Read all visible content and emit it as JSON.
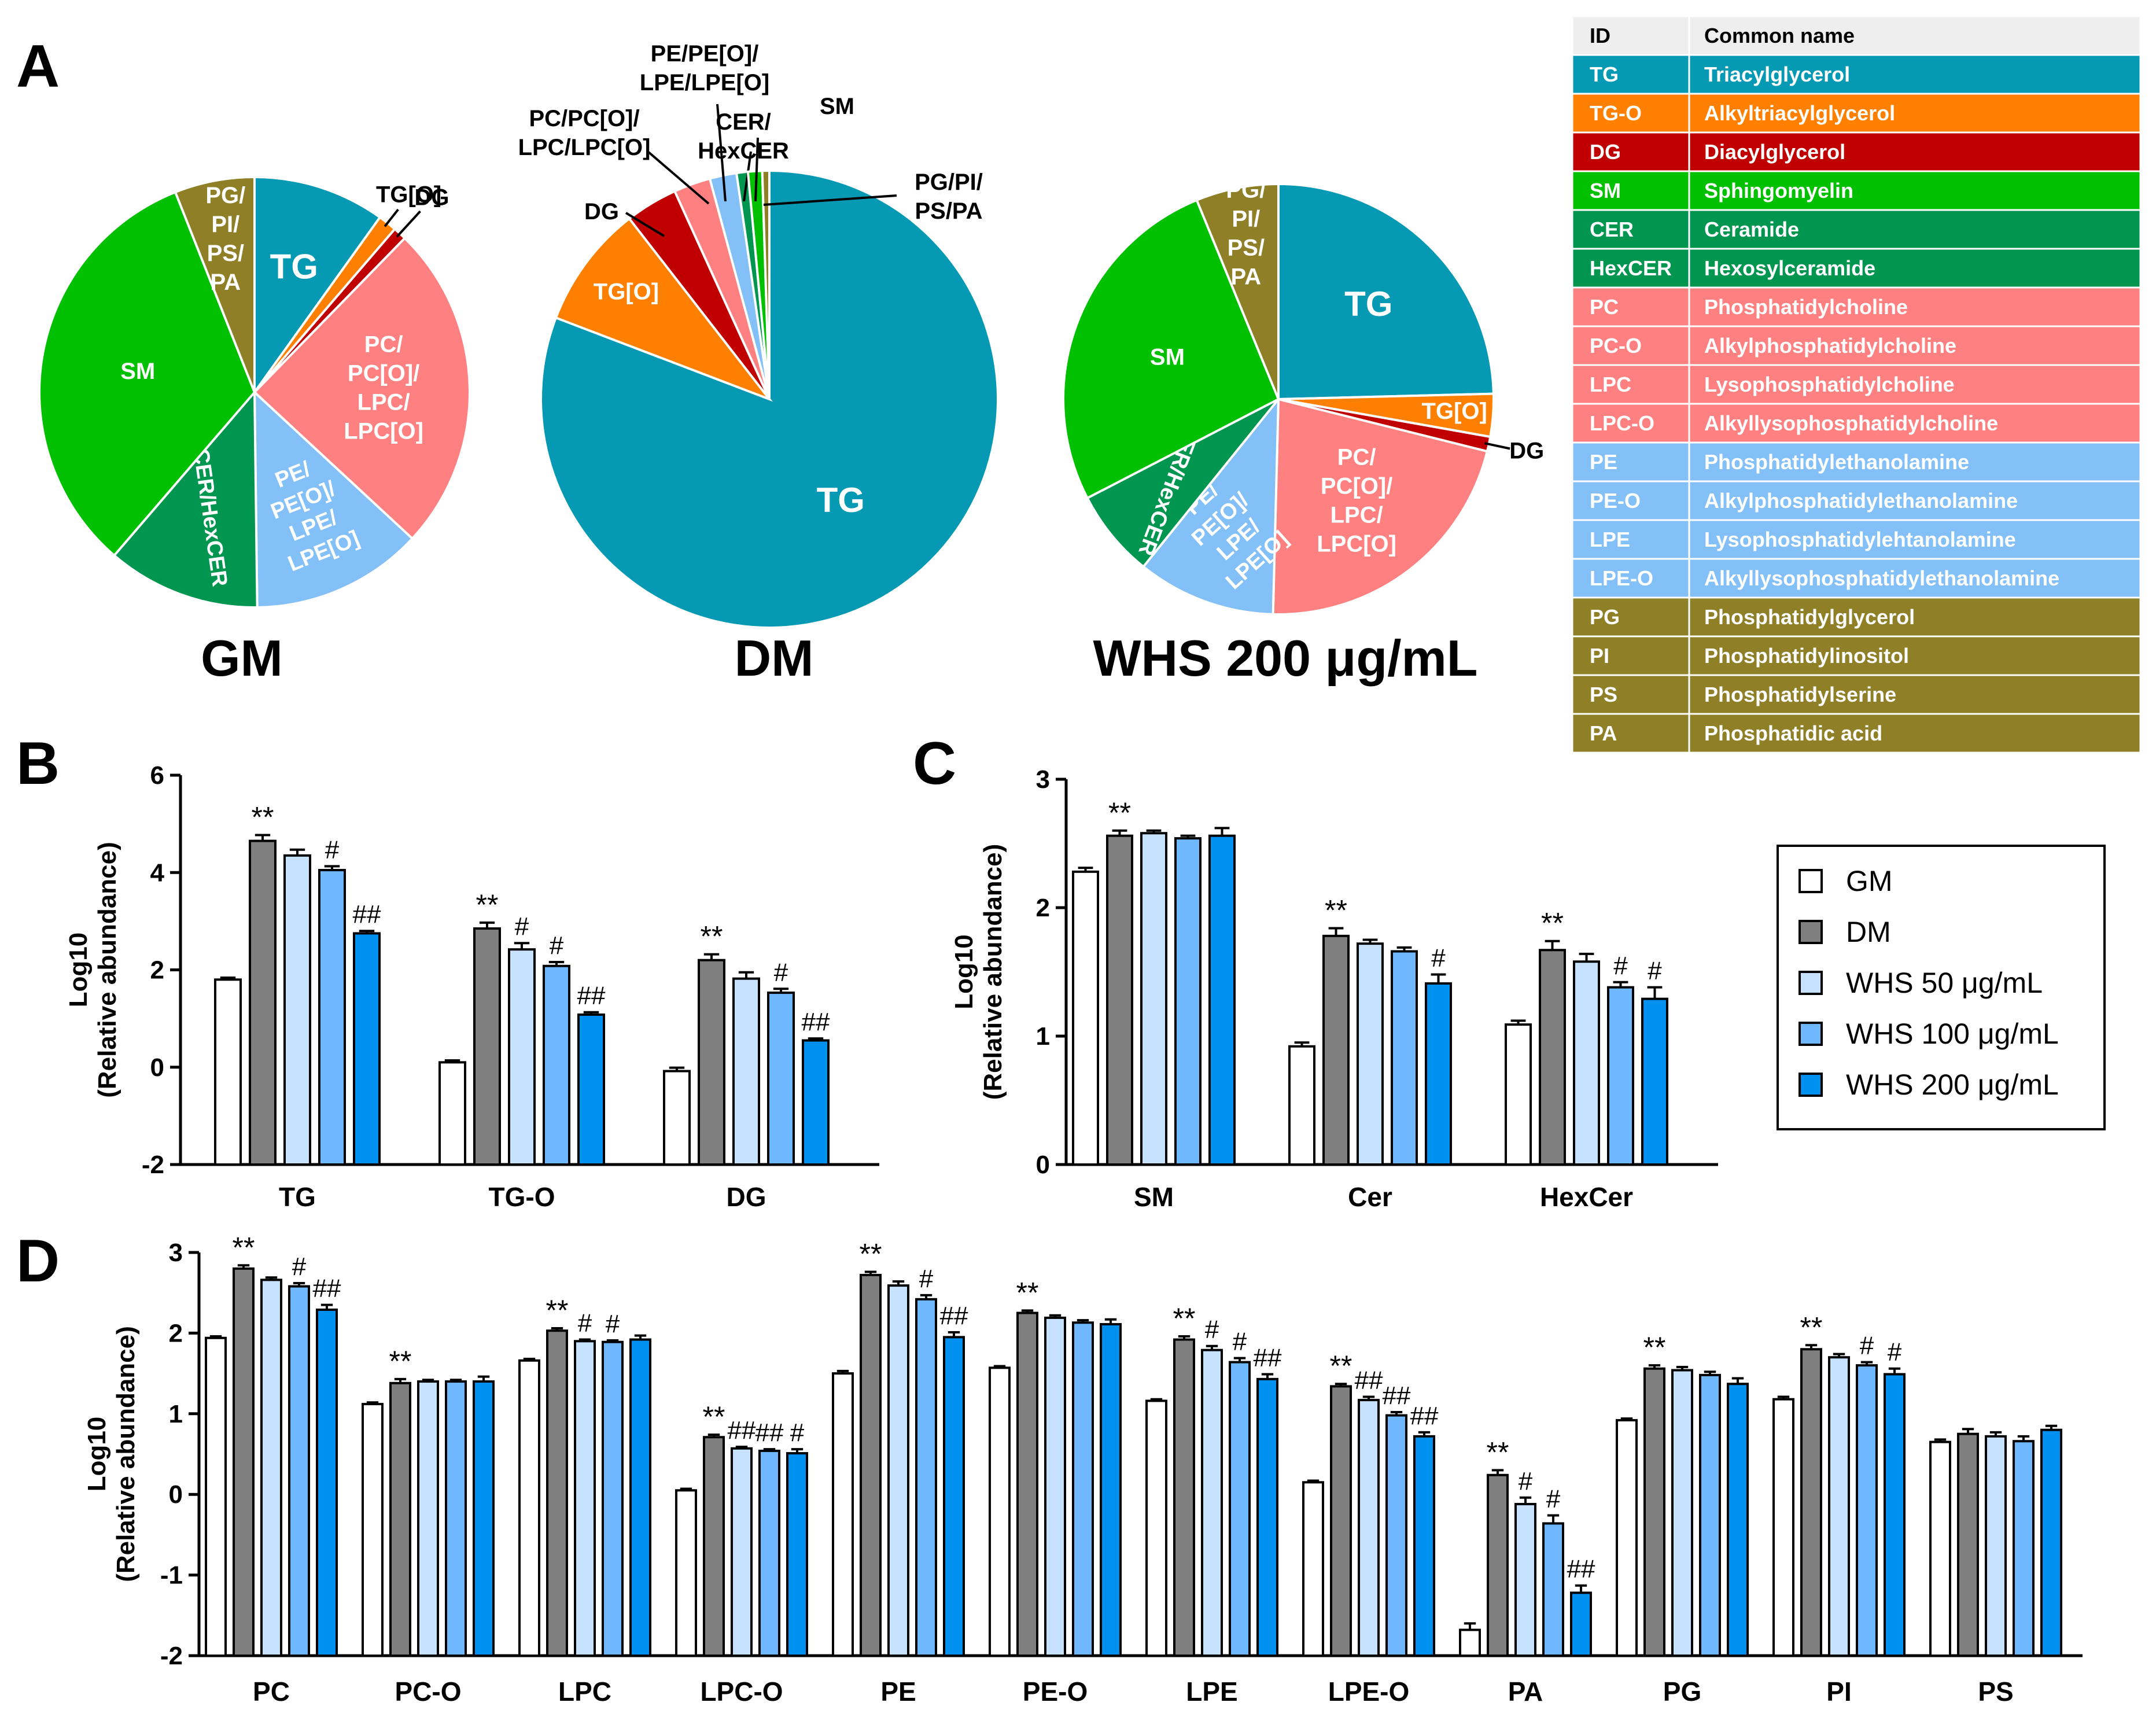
{
  "colors": {
    "TG": "#0599b3",
    "TGO": "#ff8000",
    "DG": "#c00000",
    "SM": "#00c000",
    "CER": "#009650",
    "PC": "#ff8080",
    "PE": "#84c0f8",
    "PG": "#8f7f27",
    "GM": "#ffffff",
    "DM": "#7f7f7f",
    "W50": "#c6e2ff",
    "W100": "#6fb7ff",
    "W200": "#0090f0"
  },
  "panel_a": {
    "label": "A",
    "pies": [
      {
        "title": "GM",
        "slices": [
          {
            "key": "TG",
            "label": "TG",
            "pct": 9.9,
            "color_key": "TG"
          },
          {
            "key": "TG-O",
            "label": "TG[O]",
            "pct": 1.4,
            "color_key": "TGO"
          },
          {
            "key": "DG",
            "label": "DG",
            "pct": 1.0,
            "color_key": "DG"
          },
          {
            "key": "PC",
            "label": "PC/\nPC[O]/\nLPC/\nLPC[O]",
            "pct": 24.6,
            "color_key": "PC"
          },
          {
            "key": "PE",
            "label": "PE/\nPE[O]/\nLPE/\nLPE[O]",
            "pct": 12.9,
            "color_key": "PE"
          },
          {
            "key": "CER",
            "label": "CER/HexCER",
            "pct": 11.5,
            "color_key": "CER"
          },
          {
            "key": "SM",
            "label": "SM",
            "pct": 32.7,
            "color_key": "SM"
          },
          {
            "key": "PG",
            "label": "PG/\nPI/\nPS/\nPA",
            "pct": 6.0,
            "color_key": "PG"
          }
        ]
      },
      {
        "title": "DM",
        "slices": [
          {
            "key": "TG",
            "label": "TG",
            "pct": 80.8,
            "color_key": "TG"
          },
          {
            "key": "TG-O",
            "label": "TG[O]",
            "pct": 8.7,
            "color_key": "TGO"
          },
          {
            "key": "DG",
            "label": "DG",
            "pct": 3.7,
            "color_key": "DG"
          },
          {
            "key": "PC",
            "label": "PC/PC[O]/\nLPC/LPC[O]",
            "pct": 2.6,
            "color_key": "PC"
          },
          {
            "key": "PE",
            "label": "PE/PE[O]/\nLPE/LPE[O]",
            "pct": 1.9,
            "color_key": "PE"
          },
          {
            "key": "CER",
            "label": "CER/\nHexCER",
            "pct": 0.8,
            "color_key": "CER"
          },
          {
            "key": "SM",
            "label": "SM",
            "pct": 1.0,
            "color_key": "SM"
          },
          {
            "key": "PG",
            "label": "PG/PI/\nPS/PA",
            "pct": 0.5,
            "color_key": "PG"
          }
        ]
      },
      {
        "title": "WHS 200 μg/mL",
        "slices": [
          {
            "key": "TG",
            "label": "TG",
            "pct": 24.6,
            "color_key": "TG"
          },
          {
            "key": "TG-O",
            "label": "TG[O]",
            "pct": 3.2,
            "color_key": "TGO"
          },
          {
            "key": "DG",
            "label": "DG",
            "pct": 1.1,
            "color_key": "DG"
          },
          {
            "key": "PC",
            "label": "PC/\nPC[O]/\nLPC/\nLPC[O]",
            "pct": 21.5,
            "color_key": "PC"
          },
          {
            "key": "PE",
            "label": "PE/\nPE[O]/\nLPE/\nLPE[O]",
            "pct": 10.4,
            "color_key": "PE"
          },
          {
            "key": "CER",
            "label": "CER/HexCER",
            "pct": 6.6,
            "color_key": "CER"
          },
          {
            "key": "SM",
            "label": "SM",
            "pct": 26.4,
            "color_key": "SM"
          },
          {
            "key": "PG",
            "label": "PG/\nPI/\nPS/\nPA",
            "pct": 6.2,
            "color_key": "PG"
          }
        ]
      }
    ]
  },
  "legend_table": {
    "headers": [
      "ID",
      "Common name"
    ],
    "rows": [
      {
        "id": "TG",
        "name": "Triacylglycerol",
        "color_key": "TG"
      },
      {
        "id": "TG-O",
        "name": "Alkyltriacylglycerol",
        "color_key": "TGO"
      },
      {
        "id": "DG",
        "name": "Diacylglycerol",
        "color_key": "DG"
      },
      {
        "id": "SM",
        "name": "Sphingomyelin",
        "color_key": "SM"
      },
      {
        "id": "CER",
        "name": "Ceramide",
        "color_key": "CER"
      },
      {
        "id": "HexCER",
        "name": "Hexosylceramide",
        "color_key": "CER"
      },
      {
        "id": "PC",
        "name": "Phosphatidylcholine",
        "color_key": "PC"
      },
      {
        "id": "PC-O",
        "name": "Alkylphosphatidylcholine",
        "color_key": "PC"
      },
      {
        "id": "LPC",
        "name": "Lysophosphatidylcholine",
        "color_key": "PC"
      },
      {
        "id": "LPC-O",
        "name": "Alkyllysophosphatidylcholine",
        "color_key": "PC"
      },
      {
        "id": "PE",
        "name": "Phosphatidylethanolamine",
        "color_key": "PE"
      },
      {
        "id": "PE-O",
        "name": "Alkylphosphatidylethanolamine",
        "color_key": "PE"
      },
      {
        "id": "LPE",
        "name": "Lysophosphatidylehtanolamine",
        "color_key": "PE"
      },
      {
        "id": "LPE-O",
        "name": "Alkyllysophosphatidylethanolamine",
        "color_key": "PE"
      },
      {
        "id": "PG",
        "name": "Phosphatidylglycerol",
        "color_key": "PG"
      },
      {
        "id": "PI",
        "name": "Phosphatidylinositol",
        "color_key": "PG"
      },
      {
        "id": "PS",
        "name": "Phosphatidylserine",
        "color_key": "PG"
      },
      {
        "id": "PA",
        "name": "Phosphatidic acid",
        "color_key": "PG"
      }
    ]
  },
  "bar_legend": {
    "entries": [
      {
        "name": "GM",
        "color_key": "GM"
      },
      {
        "name": "DM",
        "color_key": "DM"
      },
      {
        "name": "WHS 50 μg/mL",
        "color_key": "W50"
      },
      {
        "name": "WHS 100 μg/mL",
        "color_key": "W100"
      },
      {
        "name": "WHS 200 μg/mL",
        "color_key": "W200"
      }
    ]
  },
  "chart_data": [
    {
      "panel": "A-GM",
      "type": "pie",
      "title": "GM",
      "categories": [
        "TG",
        "TG[O]",
        "DG",
        "PC/PC[O]/LPC/LPC[O]",
        "PE/PE[O]/LPE/LPE[O]",
        "CER/HexCER",
        "SM",
        "PG/PI/PS/PA"
      ],
      "values": [
        9.9,
        1.4,
        1.0,
        24.6,
        12.9,
        11.5,
        32.7,
        6.0
      ]
    },
    {
      "panel": "A-DM",
      "type": "pie",
      "title": "DM",
      "categories": [
        "TG",
        "TG[O]",
        "DG",
        "PC/PC[O]/LPC/LPC[O]",
        "PE/PE[O]/LPE/LPE[O]",
        "CER/HexCER",
        "SM",
        "PG/PI/PS/PA"
      ],
      "values": [
        80.8,
        8.7,
        3.7,
        2.6,
        1.9,
        0.8,
        1.0,
        0.5
      ]
    },
    {
      "panel": "A-WHS200",
      "type": "pie",
      "title": "WHS 200 μg/mL",
      "categories": [
        "TG",
        "TG[O]",
        "DG",
        "PC/PC[O]/LPC/LPC[O]",
        "PE/PE[O]/LPE/LPE[O]",
        "CER/HexCER",
        "SM",
        "PG/PI/PS/PA"
      ],
      "values": [
        24.6,
        3.2,
        1.1,
        21.5,
        10.4,
        6.6,
        26.4,
        6.2
      ]
    },
    {
      "panel": "B",
      "label": "B",
      "type": "bar",
      "ylabel": "Log10\n(Relative abundance)",
      "ylim": [
        -2,
        6
      ],
      "yticks": [
        -2,
        0,
        2,
        4,
        6
      ],
      "categories": [
        "TG",
        "TG-O",
        "DG"
      ],
      "series": [
        {
          "name": "GM",
          "values": [
            1.8,
            0.1,
            -0.08
          ],
          "errors": [
            0.04,
            0.04,
            0.07
          ],
          "marks": [
            "",
            "",
            ""
          ]
        },
        {
          "name": "DM",
          "values": [
            4.65,
            2.85,
            2.2
          ],
          "errors": [
            0.12,
            0.12,
            0.12
          ],
          "marks": [
            "**",
            "**",
            "**"
          ]
        },
        {
          "name": "WHS 50 μg/mL",
          "values": [
            4.35,
            2.42,
            1.82
          ],
          "errors": [
            0.12,
            0.13,
            0.13
          ],
          "marks": [
            "",
            "#",
            ""
          ]
        },
        {
          "name": "WHS 100 μg/mL",
          "values": [
            4.05,
            2.08,
            1.53
          ],
          "errors": [
            0.08,
            0.08,
            0.08
          ],
          "marks": [
            "#",
            "#",
            "#"
          ]
        },
        {
          "name": "WHS 200 μg/mL",
          "values": [
            2.75,
            1.08,
            0.55
          ],
          "errors": [
            0.05,
            0.05,
            0.04
          ],
          "marks": [
            "##",
            "##",
            "##"
          ]
        }
      ]
    },
    {
      "panel": "C",
      "label": "C",
      "type": "bar",
      "ylabel": "Log10\n(Relative abundance)",
      "ylim": [
        0,
        3
      ],
      "yticks": [
        0,
        1,
        2,
        3
      ],
      "categories": [
        "SM",
        "Cer",
        "HexCer"
      ],
      "series": [
        {
          "name": "GM",
          "values": [
            2.28,
            0.92,
            1.09
          ],
          "errors": [
            0.03,
            0.03,
            0.03
          ],
          "marks": [
            "",
            "",
            ""
          ]
        },
        {
          "name": "DM",
          "values": [
            2.56,
            1.78,
            1.67
          ],
          "errors": [
            0.04,
            0.06,
            0.07
          ],
          "marks": [
            "**",
            "**",
            "**"
          ]
        },
        {
          "name": "WHS 50 μg/mL",
          "values": [
            2.58,
            1.72,
            1.58
          ],
          "errors": [
            0.02,
            0.03,
            0.06
          ],
          "marks": [
            "",
            "",
            ""
          ]
        },
        {
          "name": "WHS 100 μg/mL",
          "values": [
            2.54,
            1.66,
            1.38
          ],
          "errors": [
            0.02,
            0.03,
            0.04
          ],
          "marks": [
            "",
            "",
            "#"
          ]
        },
        {
          "name": "WHS 200 μg/mL",
          "values": [
            2.56,
            1.41,
            1.29
          ],
          "errors": [
            0.06,
            0.07,
            0.09
          ],
          "marks": [
            "",
            "#",
            "#"
          ]
        }
      ]
    },
    {
      "panel": "D",
      "label": "D",
      "type": "bar",
      "ylabel": "Log10\n(Relative abundance)",
      "ylim": [
        -2,
        3
      ],
      "yticks": [
        -2,
        -1,
        0,
        1,
        2,
        3
      ],
      "categories": [
        "PC",
        "PC-O",
        "LPC",
        "LPC-O",
        "PE",
        "PE-O",
        "LPE",
        "LPE-O",
        "PA",
        "PG",
        "PI",
        "PS"
      ],
      "series": [
        {
          "name": "GM",
          "values": [
            1.94,
            1.12,
            1.66,
            0.05,
            1.5,
            1.57,
            1.16,
            0.15,
            -1.68,
            0.92,
            1.18,
            0.65
          ],
          "errors": [
            0.02,
            0.02,
            0.02,
            0.02,
            0.03,
            0.02,
            0.02,
            0.02,
            0.08,
            0.02,
            0.03,
            0.03
          ],
          "marks": [
            "",
            "",
            "",
            "",
            "",
            "",
            "",
            "",
            "",
            "",
            "",
            ""
          ]
        },
        {
          "name": "DM",
          "values": [
            2.8,
            1.38,
            2.03,
            0.71,
            2.72,
            2.25,
            1.92,
            1.34,
            0.24,
            1.56,
            1.8,
            0.75
          ],
          "errors": [
            0.04,
            0.05,
            0.03,
            0.03,
            0.04,
            0.03,
            0.04,
            0.03,
            0.06,
            0.04,
            0.05,
            0.06
          ],
          "marks": [
            "**",
            "**",
            "**",
            "**",
            "**",
            "**",
            "**",
            "**",
            "**",
            "**",
            "**",
            ""
          ]
        },
        {
          "name": "WHS 50 μg/mL",
          "values": [
            2.66,
            1.4,
            1.9,
            0.57,
            2.59,
            2.19,
            1.79,
            1.17,
            -0.12,
            1.54,
            1.7,
            0.72
          ],
          "errors": [
            0.03,
            0.02,
            0.02,
            0.02,
            0.05,
            0.03,
            0.05,
            0.04,
            0.08,
            0.04,
            0.04,
            0.05
          ],
          "marks": [
            "",
            "",
            "#",
            "##",
            "",
            "",
            "#",
            "##",
            "#",
            "",
            "",
            ""
          ]
        },
        {
          "name": "WHS 100 μg/mL",
          "values": [
            2.58,
            1.4,
            1.89,
            0.54,
            2.42,
            2.13,
            1.64,
            0.98,
            -0.36,
            1.48,
            1.6,
            0.66
          ],
          "errors": [
            0.04,
            0.02,
            0.02,
            0.02,
            0.05,
            0.03,
            0.05,
            0.04,
            0.1,
            0.04,
            0.04,
            0.06
          ],
          "marks": [
            "#",
            "",
            "#",
            "##",
            "#",
            "",
            "#",
            "##",
            "#",
            "",
            "#",
            ""
          ]
        },
        {
          "name": "WHS 200 μg/mL",
          "values": [
            2.29,
            1.4,
            1.92,
            0.51,
            1.95,
            2.11,
            1.43,
            0.72,
            -1.22,
            1.37,
            1.49,
            0.8
          ],
          "errors": [
            0.06,
            0.06,
            0.05,
            0.05,
            0.06,
            0.06,
            0.06,
            0.05,
            0.09,
            0.07,
            0.07,
            0.05
          ],
          "marks": [
            "##",
            "",
            "",
            "#",
            "##",
            "",
            "##",
            "##",
            "##",
            "",
            "#",
            ""
          ]
        }
      ]
    }
  ]
}
